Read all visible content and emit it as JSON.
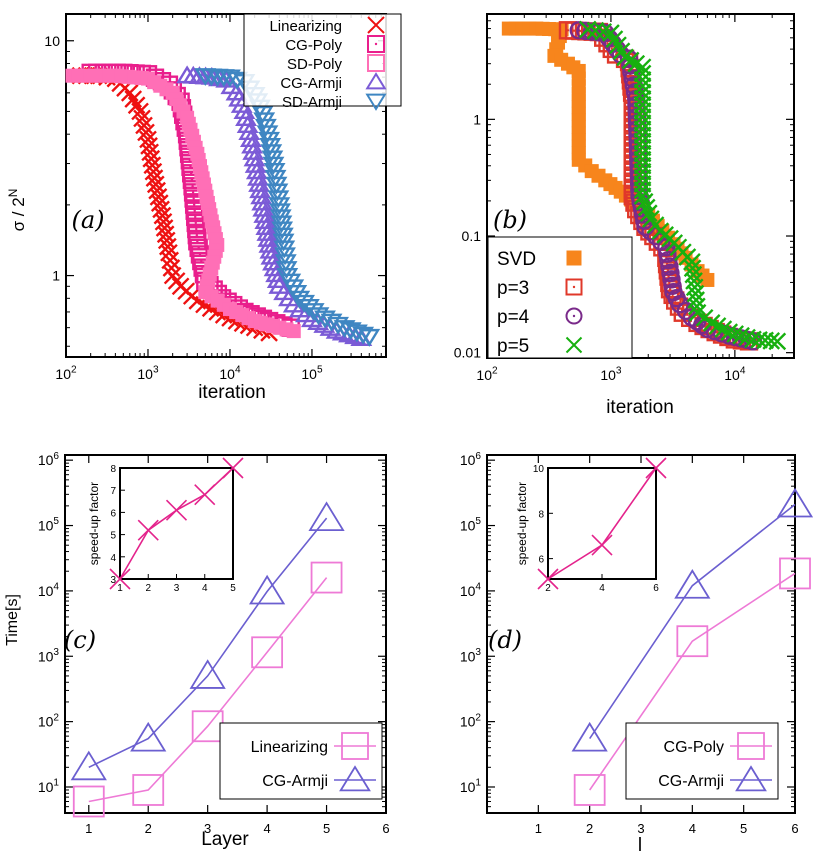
{
  "colors": {
    "red": "#ee1111",
    "hotpink": "#e91e8c",
    "pink": "#ff6fb6",
    "violet": "#7b5bd6",
    "steelblue": "#3f86c2",
    "orange": "#f7851c",
    "brickred": "#e0382a",
    "purple": "#7a2a8a",
    "green": "#17b00f",
    "magenta": "#e4238c",
    "lightmagenta": "#ee7ad6",
    "slate": "#6b5fd0"
  },
  "chart_data": [
    {
      "id": "a",
      "type": "scatter",
      "panel_label": "(a)",
      "xlabel": "iteration",
      "ylabel": "σ / 2^N",
      "xscale": "log",
      "yscale": "log",
      "xlim": [
        100,
        800000
      ],
      "ylim": [
        0.45,
        13
      ],
      "xticks": [
        {
          "v": 100,
          "b": "10",
          "e": "2"
        },
        {
          "v": 1000,
          "b": "10",
          "e": "3"
        },
        {
          "v": 10000,
          "b": "10",
          "e": "4"
        },
        {
          "v": 100000,
          "b": "10",
          "e": "5"
        }
      ],
      "yticks": [
        {
          "v": 1,
          "label": "1"
        },
        {
          "v": 10,
          "label": "10"
        }
      ],
      "legend_position": "top-right",
      "series": [
        {
          "name": "Linearizing",
          "marker": "x",
          "color": "red",
          "points": [
            [
              150,
              7.1
            ],
            [
              250,
              7.1
            ],
            [
              400,
              6.9
            ],
            [
              600,
              6.0
            ],
            [
              800,
              5.0
            ],
            [
              1000,
              3.8
            ],
            [
              1200,
              2.6
            ],
            [
              1500,
              1.8
            ],
            [
              1800,
              1.25
            ],
            [
              2000,
              1.0
            ],
            [
              2500,
              0.9
            ],
            [
              4000,
              0.78
            ],
            [
              7000,
              0.7
            ],
            [
              12000,
              0.64
            ],
            [
              20000,
              0.6
            ],
            [
              30000,
              0.57
            ]
          ]
        },
        {
          "name": "CG-Poly",
          "marker": "square-dot",
          "color": "hotpink",
          "points": [
            [
              200,
              7.3
            ],
            [
              500,
              7.3
            ],
            [
              1000,
              7.2
            ],
            [
              1800,
              6.5
            ],
            [
              2500,
              5.5
            ],
            [
              3000,
              4.0
            ],
            [
              3500,
              2.4
            ],
            [
              4000,
              1.4
            ],
            [
              5000,
              0.95
            ],
            [
              8000,
              0.8
            ],
            [
              15000,
              0.7
            ],
            [
              30000,
              0.64
            ],
            [
              55000,
              0.6
            ]
          ]
        },
        {
          "name": "SD-Poly",
          "marker": "square",
          "color": "pink",
          "points": [
            [
              120,
              7.1
            ],
            [
              400,
              7.1
            ],
            [
              1000,
              6.9
            ],
            [
              2000,
              6.0
            ],
            [
              3000,
              4.7
            ],
            [
              4000,
              3.3
            ],
            [
              5000,
              2.3
            ],
            [
              6000,
              1.7
            ],
            [
              7000,
              1.35
            ],
            [
              5000,
              0.85
            ],
            [
              10000,
              0.72
            ],
            [
              20000,
              0.64
            ],
            [
              40000,
              0.6
            ],
            [
              60000,
              0.58
            ]
          ]
        },
        {
          "name": "CG-Armji",
          "marker": "triangle-up",
          "color": "violet",
          "points": [
            [
              3000,
              7.1
            ],
            [
              6000,
              7.0
            ],
            [
              9000,
              6.8
            ],
            [
              12000,
              6.0
            ],
            [
              15000,
              5.0
            ],
            [
              18000,
              3.8
            ],
            [
              22000,
              2.6
            ],
            [
              27000,
              1.7
            ],
            [
              32000,
              1.2
            ],
            [
              40000,
              0.9
            ],
            [
              60000,
              0.75
            ],
            [
              100000,
              0.65
            ],
            [
              200000,
              0.58
            ],
            [
              400000,
              0.54
            ]
          ]
        },
        {
          "name": "SD-Armji",
          "marker": "triangle-down",
          "color": "steelblue",
          "points": [
            [
              5000,
              7.1
            ],
            [
              10000,
              7.0
            ],
            [
              15000,
              6.7
            ],
            [
              20000,
              5.9
            ],
            [
              25000,
              4.9
            ],
            [
              30000,
              3.8
            ],
            [
              35000,
              2.8
            ],
            [
              40000,
              2.0
            ],
            [
              45000,
              1.4
            ],
            [
              50000,
              1.0
            ],
            [
              70000,
              0.8
            ],
            [
              120000,
              0.68
            ],
            [
              250000,
              0.6
            ],
            [
              500000,
              0.55
            ]
          ]
        }
      ]
    },
    {
      "id": "b",
      "type": "scatter",
      "panel_label": "(b)",
      "xlabel": "iteration",
      "ylabel": "",
      "xscale": "log",
      "yscale": "log",
      "xlim": [
        100,
        30000
      ],
      "ylim": [
        0.009,
        8
      ],
      "xticks": [
        {
          "v": 100,
          "b": "10",
          "e": "2"
        },
        {
          "v": 1000,
          "b": "10",
          "e": "3"
        },
        {
          "v": 10000,
          "b": "10",
          "e": "4"
        }
      ],
      "yticks": [
        {
          "v": 0.01,
          "label": "0.01"
        },
        {
          "v": 0.1,
          "label": "0.1"
        },
        {
          "v": 1,
          "label": "1"
        }
      ],
      "legend_position": "bottom-left",
      "series": [
        {
          "name": "SVD",
          "marker": "square",
          "color": "orange",
          "points": [
            [
              150,
              6.0
            ],
            [
              250,
              6.0
            ],
            [
              400,
              5.9
            ],
            [
              350,
              3.5
            ],
            [
              450,
              3.0
            ],
            [
              550,
              2.6
            ],
            [
              550,
              1.65
            ],
            [
              550,
              0.45
            ],
            [
              700,
              0.36
            ],
            [
              900,
              0.3
            ],
            [
              1200,
              0.24
            ],
            [
              1600,
              0.19
            ],
            [
              2000,
              0.15
            ],
            [
              2600,
              0.11
            ],
            [
              3200,
              0.085
            ],
            [
              4000,
              0.065
            ],
            [
              5000,
              0.05
            ],
            [
              6000,
              0.042
            ]
          ]
        },
        {
          "name": "p=3",
          "marker": "square-dot",
          "color": "brickred",
          "points": [
            [
              450,
              5.8
            ],
            [
              800,
              5.6
            ],
            [
              1100,
              3.6
            ],
            [
              1300,
              3.3
            ],
            [
              1400,
              3.1
            ],
            [
              1500,
              1.5
            ],
            [
              1500,
              0.22
            ],
            [
              1600,
              0.17
            ],
            [
              1900,
              0.12
            ],
            [
              2200,
              0.1
            ],
            [
              2600,
              0.08
            ],
            [
              2800,
              0.065
            ],
            [
              3000,
              0.035
            ],
            [
              3300,
              0.028
            ],
            [
              3800,
              0.022
            ],
            [
              5000,
              0.018
            ],
            [
              7000,
              0.015
            ],
            [
              10000,
              0.013
            ],
            [
              13000,
              0.0125
            ]
          ]
        },
        {
          "name": "p=4",
          "marker": "circle-dot",
          "color": "purple",
          "points": [
            [
              550,
              5.8
            ],
            [
              900,
              5.5
            ],
            [
              1200,
              3.6
            ],
            [
              1400,
              3.3
            ],
            [
              1600,
              1.5
            ],
            [
              1700,
              0.22
            ],
            [
              1900,
              0.12
            ],
            [
              2300,
              0.1
            ],
            [
              2800,
              0.08
            ],
            [
              3200,
              0.033
            ],
            [
              3600,
              0.026
            ],
            [
              4500,
              0.02
            ],
            [
              6000,
              0.016
            ],
            [
              9000,
              0.014
            ],
            [
              14000,
              0.0125
            ]
          ]
        },
        {
          "name": "p=5",
          "marker": "x",
          "color": "green",
          "points": [
            [
              650,
              5.9
            ],
            [
              1000,
              5.5
            ],
            [
              1300,
              3.4
            ],
            [
              1600,
              3.0
            ],
            [
              1800,
              2.8
            ],
            [
              1800,
              1.5
            ],
            [
              1800,
              0.22
            ],
            [
              2100,
              0.14
            ],
            [
              2500,
              0.11
            ],
            [
              3000,
              0.095
            ],
            [
              3500,
              0.08
            ],
            [
              4500,
              0.06
            ],
            [
              5000,
              0.022
            ],
            [
              6500,
              0.018
            ],
            [
              9000,
              0.015
            ],
            [
              14000,
              0.013
            ],
            [
              22000,
              0.0125
            ]
          ]
        }
      ]
    },
    {
      "id": "c",
      "type": "line",
      "panel_label": "(c)",
      "xlabel": "Layer",
      "ylabel": "Time[s]",
      "xscale": "linear",
      "yscale": "log",
      "xlim": [
        0.6,
        6
      ],
      "ylim": [
        4,
        1200000
      ],
      "xticks": [
        {
          "v": 1,
          "label": "1"
        },
        {
          "v": 2,
          "label": "2"
        },
        {
          "v": 3,
          "label": "3"
        },
        {
          "v": 4,
          "label": "4"
        },
        {
          "v": 5,
          "label": "5"
        },
        {
          "v": 6,
          "label": "6"
        }
      ],
      "yticks": [
        {
          "v": 10,
          "b": "10",
          "e": "1"
        },
        {
          "v": 100,
          "b": "10",
          "e": "2"
        },
        {
          "v": 1000,
          "b": "10",
          "e": "3"
        },
        {
          "v": 10000,
          "b": "10",
          "e": "4"
        },
        {
          "v": 100000,
          "b": "10",
          "e": "5"
        },
        {
          "v": 1000000,
          "b": "10",
          "e": "6"
        }
      ],
      "legend_position": "bottom-right",
      "series": [
        {
          "name": "Linearizing",
          "marker": "square",
          "color": "lightmagenta",
          "points": [
            [
              1,
              6
            ],
            [
              2,
              9
            ],
            [
              3,
              85
            ],
            [
              4,
              1150
            ],
            [
              5,
              16000
            ]
          ]
        },
        {
          "name": "CG-Armji",
          "marker": "triangle-up",
          "color": "slate",
          "points": [
            [
              1,
              20
            ],
            [
              2,
              55
            ],
            [
              3,
              500
            ],
            [
              4,
              9800
            ],
            [
              5,
              130000
            ]
          ]
        }
      ],
      "inset": {
        "xlabel": "",
        "ylabel": "speed-up factor",
        "xlim": [
          1,
          5
        ],
        "ylim": [
          3,
          8
        ],
        "xticks": [
          1,
          2,
          3,
          4,
          5
        ],
        "yticks": [
          3,
          4,
          5,
          6,
          7,
          8
        ],
        "series": [
          {
            "marker": "x",
            "color": "magenta",
            "points": [
              [
                1,
                3.0
              ],
              [
                2,
                5.2
              ],
              [
                3,
                6.1
              ],
              [
                4,
                6.8
              ],
              [
                5,
                8.0
              ]
            ]
          }
        ]
      }
    },
    {
      "id": "d",
      "type": "line",
      "panel_label": "(d)",
      "xlabel": "l",
      "ylabel": "",
      "xscale": "linear",
      "yscale": "log",
      "xlim": [
        0,
        6
      ],
      "ylim": [
        4,
        1200000
      ],
      "xticks": [
        {
          "v": 1,
          "label": "1"
        },
        {
          "v": 2,
          "label": "2"
        },
        {
          "v": 3,
          "label": "3"
        },
        {
          "v": 4,
          "label": "4"
        },
        {
          "v": 5,
          "label": "5"
        },
        {
          "v": 6,
          "label": "6"
        }
      ],
      "yticks": [
        {
          "v": 10,
          "b": "10",
          "e": "1"
        },
        {
          "v": 100,
          "b": "10",
          "e": "2"
        },
        {
          "v": 1000,
          "b": "10",
          "e": "3"
        },
        {
          "v": 10000,
          "b": "10",
          "e": "4"
        },
        {
          "v": 100000,
          "b": "10",
          "e": "5"
        },
        {
          "v": 1000000,
          "b": "10",
          "e": "6"
        }
      ],
      "legend_position": "bottom-right",
      "series": [
        {
          "name": "CG-Poly",
          "marker": "square",
          "color": "lightmagenta",
          "points": [
            [
              2,
              9
            ],
            [
              4,
              1700
            ],
            [
              6,
              18500
            ]
          ]
        },
        {
          "name": "CG-Armji",
          "marker": "triangle-up",
          "color": "slate",
          "points": [
            [
              2,
              55
            ],
            [
              4,
              12000
            ],
            [
              6,
              210000
            ]
          ]
        }
      ],
      "inset": {
        "xlabel": "",
        "ylabel": "speed-up factor",
        "xlim": [
          2,
          6
        ],
        "ylim": [
          5.1,
          10
        ],
        "xticks": [
          2,
          4,
          6
        ],
        "yticks": [
          6,
          8,
          10
        ],
        "series": [
          {
            "marker": "x",
            "color": "magenta",
            "points": [
              [
                2,
                5.1
              ],
              [
                4,
                6.6
              ],
              [
                6,
                10
              ]
            ]
          }
        ]
      }
    }
  ]
}
